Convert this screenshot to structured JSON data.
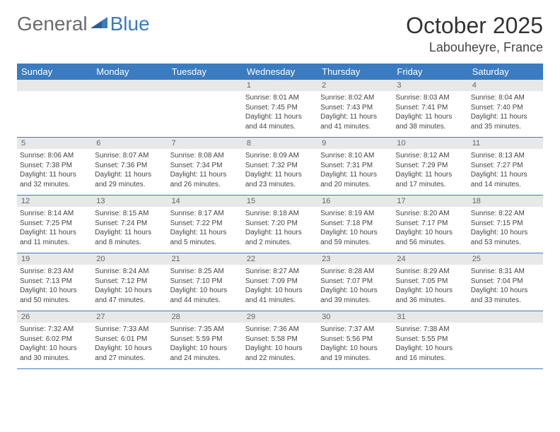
{
  "brand": {
    "part1": "General",
    "part2": "Blue"
  },
  "title": "October 2025",
  "location": "Labouheyre, France",
  "colors": {
    "header_bg": "#3b7bbf",
    "header_text": "#ffffff",
    "daynum_bg": "#e8e8e8",
    "daynum_text": "#666666",
    "body_text": "#444444",
    "rule": "#3b7bbf"
  },
  "fonts": {
    "title_size": 32,
    "location_size": 18,
    "dayhead_size": 13,
    "cell_size": 10
  },
  "day_headers": [
    "Sunday",
    "Monday",
    "Tuesday",
    "Wednesday",
    "Thursday",
    "Friday",
    "Saturday"
  ],
  "weeks": [
    [
      {
        "num": "",
        "lines": []
      },
      {
        "num": "",
        "lines": []
      },
      {
        "num": "",
        "lines": []
      },
      {
        "num": "1",
        "lines": [
          "Sunrise: 8:01 AM",
          "Sunset: 7:45 PM",
          "Daylight: 11 hours",
          "and 44 minutes."
        ]
      },
      {
        "num": "2",
        "lines": [
          "Sunrise: 8:02 AM",
          "Sunset: 7:43 PM",
          "Daylight: 11 hours",
          "and 41 minutes."
        ]
      },
      {
        "num": "3",
        "lines": [
          "Sunrise: 8:03 AM",
          "Sunset: 7:41 PM",
          "Daylight: 11 hours",
          "and 38 minutes."
        ]
      },
      {
        "num": "4",
        "lines": [
          "Sunrise: 8:04 AM",
          "Sunset: 7:40 PM",
          "Daylight: 11 hours",
          "and 35 minutes."
        ]
      }
    ],
    [
      {
        "num": "5",
        "lines": [
          "Sunrise: 8:06 AM",
          "Sunset: 7:38 PM",
          "Daylight: 11 hours",
          "and 32 minutes."
        ]
      },
      {
        "num": "6",
        "lines": [
          "Sunrise: 8:07 AM",
          "Sunset: 7:36 PM",
          "Daylight: 11 hours",
          "and 29 minutes."
        ]
      },
      {
        "num": "7",
        "lines": [
          "Sunrise: 8:08 AM",
          "Sunset: 7:34 PM",
          "Daylight: 11 hours",
          "and 26 minutes."
        ]
      },
      {
        "num": "8",
        "lines": [
          "Sunrise: 8:09 AM",
          "Sunset: 7:32 PM",
          "Daylight: 11 hours",
          "and 23 minutes."
        ]
      },
      {
        "num": "9",
        "lines": [
          "Sunrise: 8:10 AM",
          "Sunset: 7:31 PM",
          "Daylight: 11 hours",
          "and 20 minutes."
        ]
      },
      {
        "num": "10",
        "lines": [
          "Sunrise: 8:12 AM",
          "Sunset: 7:29 PM",
          "Daylight: 11 hours",
          "and 17 minutes."
        ]
      },
      {
        "num": "11",
        "lines": [
          "Sunrise: 8:13 AM",
          "Sunset: 7:27 PM",
          "Daylight: 11 hours",
          "and 14 minutes."
        ]
      }
    ],
    [
      {
        "num": "12",
        "lines": [
          "Sunrise: 8:14 AM",
          "Sunset: 7:25 PM",
          "Daylight: 11 hours",
          "and 11 minutes."
        ]
      },
      {
        "num": "13",
        "lines": [
          "Sunrise: 8:15 AM",
          "Sunset: 7:24 PM",
          "Daylight: 11 hours",
          "and 8 minutes."
        ]
      },
      {
        "num": "14",
        "lines": [
          "Sunrise: 8:17 AM",
          "Sunset: 7:22 PM",
          "Daylight: 11 hours",
          "and 5 minutes."
        ]
      },
      {
        "num": "15",
        "lines": [
          "Sunrise: 8:18 AM",
          "Sunset: 7:20 PM",
          "Daylight: 11 hours",
          "and 2 minutes."
        ]
      },
      {
        "num": "16",
        "lines": [
          "Sunrise: 8:19 AM",
          "Sunset: 7:18 PM",
          "Daylight: 10 hours",
          "and 59 minutes."
        ]
      },
      {
        "num": "17",
        "lines": [
          "Sunrise: 8:20 AM",
          "Sunset: 7:17 PM",
          "Daylight: 10 hours",
          "and 56 minutes."
        ]
      },
      {
        "num": "18",
        "lines": [
          "Sunrise: 8:22 AM",
          "Sunset: 7:15 PM",
          "Daylight: 10 hours",
          "and 53 minutes."
        ]
      }
    ],
    [
      {
        "num": "19",
        "lines": [
          "Sunrise: 8:23 AM",
          "Sunset: 7:13 PM",
          "Daylight: 10 hours",
          "and 50 minutes."
        ]
      },
      {
        "num": "20",
        "lines": [
          "Sunrise: 8:24 AM",
          "Sunset: 7:12 PM",
          "Daylight: 10 hours",
          "and 47 minutes."
        ]
      },
      {
        "num": "21",
        "lines": [
          "Sunrise: 8:25 AM",
          "Sunset: 7:10 PM",
          "Daylight: 10 hours",
          "and 44 minutes."
        ]
      },
      {
        "num": "22",
        "lines": [
          "Sunrise: 8:27 AM",
          "Sunset: 7:09 PM",
          "Daylight: 10 hours",
          "and 41 minutes."
        ]
      },
      {
        "num": "23",
        "lines": [
          "Sunrise: 8:28 AM",
          "Sunset: 7:07 PM",
          "Daylight: 10 hours",
          "and 39 minutes."
        ]
      },
      {
        "num": "24",
        "lines": [
          "Sunrise: 8:29 AM",
          "Sunset: 7:05 PM",
          "Daylight: 10 hours",
          "and 36 minutes."
        ]
      },
      {
        "num": "25",
        "lines": [
          "Sunrise: 8:31 AM",
          "Sunset: 7:04 PM",
          "Daylight: 10 hours",
          "and 33 minutes."
        ]
      }
    ],
    [
      {
        "num": "26",
        "lines": [
          "Sunrise: 7:32 AM",
          "Sunset: 6:02 PM",
          "Daylight: 10 hours",
          "and 30 minutes."
        ]
      },
      {
        "num": "27",
        "lines": [
          "Sunrise: 7:33 AM",
          "Sunset: 6:01 PM",
          "Daylight: 10 hours",
          "and 27 minutes."
        ]
      },
      {
        "num": "28",
        "lines": [
          "Sunrise: 7:35 AM",
          "Sunset: 5:59 PM",
          "Daylight: 10 hours",
          "and 24 minutes."
        ]
      },
      {
        "num": "29",
        "lines": [
          "Sunrise: 7:36 AM",
          "Sunset: 5:58 PM",
          "Daylight: 10 hours",
          "and 22 minutes."
        ]
      },
      {
        "num": "30",
        "lines": [
          "Sunrise: 7:37 AM",
          "Sunset: 5:56 PM",
          "Daylight: 10 hours",
          "and 19 minutes."
        ]
      },
      {
        "num": "31",
        "lines": [
          "Sunrise: 7:38 AM",
          "Sunset: 5:55 PM",
          "Daylight: 10 hours",
          "and 16 minutes."
        ]
      },
      {
        "num": "",
        "lines": []
      }
    ]
  ]
}
